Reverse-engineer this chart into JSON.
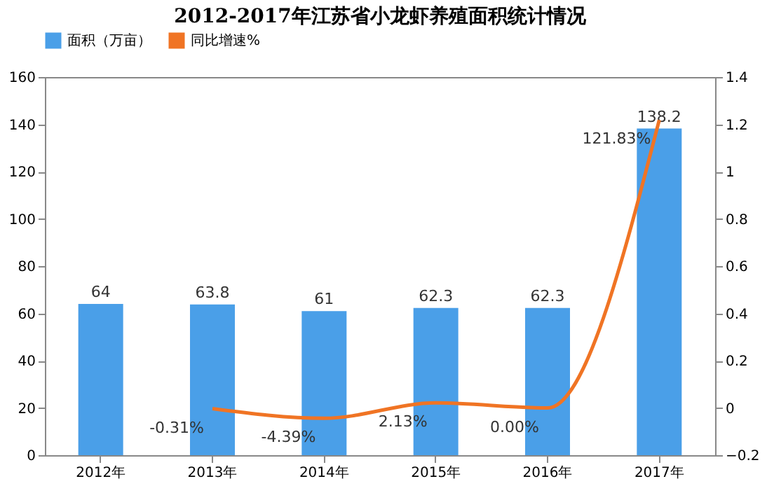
{
  "chart_data": {
    "type": "bar",
    "title": "2012-2017年江苏省小龙虾养殖面积统计情况",
    "categories": [
      "2012年",
      "2013年",
      "2014年",
      "2015年",
      "2016年",
      "2017年"
    ],
    "series": [
      {
        "name": "面积（万亩）",
        "color": "#4a9fe8",
        "values": [
          64,
          63.8,
          61,
          62.3,
          62.3,
          138.2
        ],
        "value_labels": [
          "64",
          "63.8",
          "61",
          "62.3",
          "62.3",
          "138.2"
        ]
      },
      {
        "name": "同比增速%",
        "type": "line",
        "axis": "y2",
        "color": "#f07424",
        "values": [
          null,
          -0.0031,
          -0.0439,
          0.0213,
          0.0,
          1.2183
        ],
        "value_labels": [
          null,
          "-0.31%",
          "-4.39%",
          "2.13%",
          "0.00%",
          "121.83%"
        ]
      }
    ],
    "ylim": [
      0,
      160
    ],
    "yticks": [
      0,
      20,
      40,
      60,
      80,
      100,
      120,
      140,
      160
    ],
    "y2lim": [
      -0.2,
      1.4
    ],
    "y2ticks": [
      -0.2,
      0,
      0.2,
      0.4,
      0.6,
      0.8,
      1,
      1.2,
      1.4
    ],
    "legend": "top",
    "grid": false,
    "marker": "none",
    "line_style": "solid"
  }
}
